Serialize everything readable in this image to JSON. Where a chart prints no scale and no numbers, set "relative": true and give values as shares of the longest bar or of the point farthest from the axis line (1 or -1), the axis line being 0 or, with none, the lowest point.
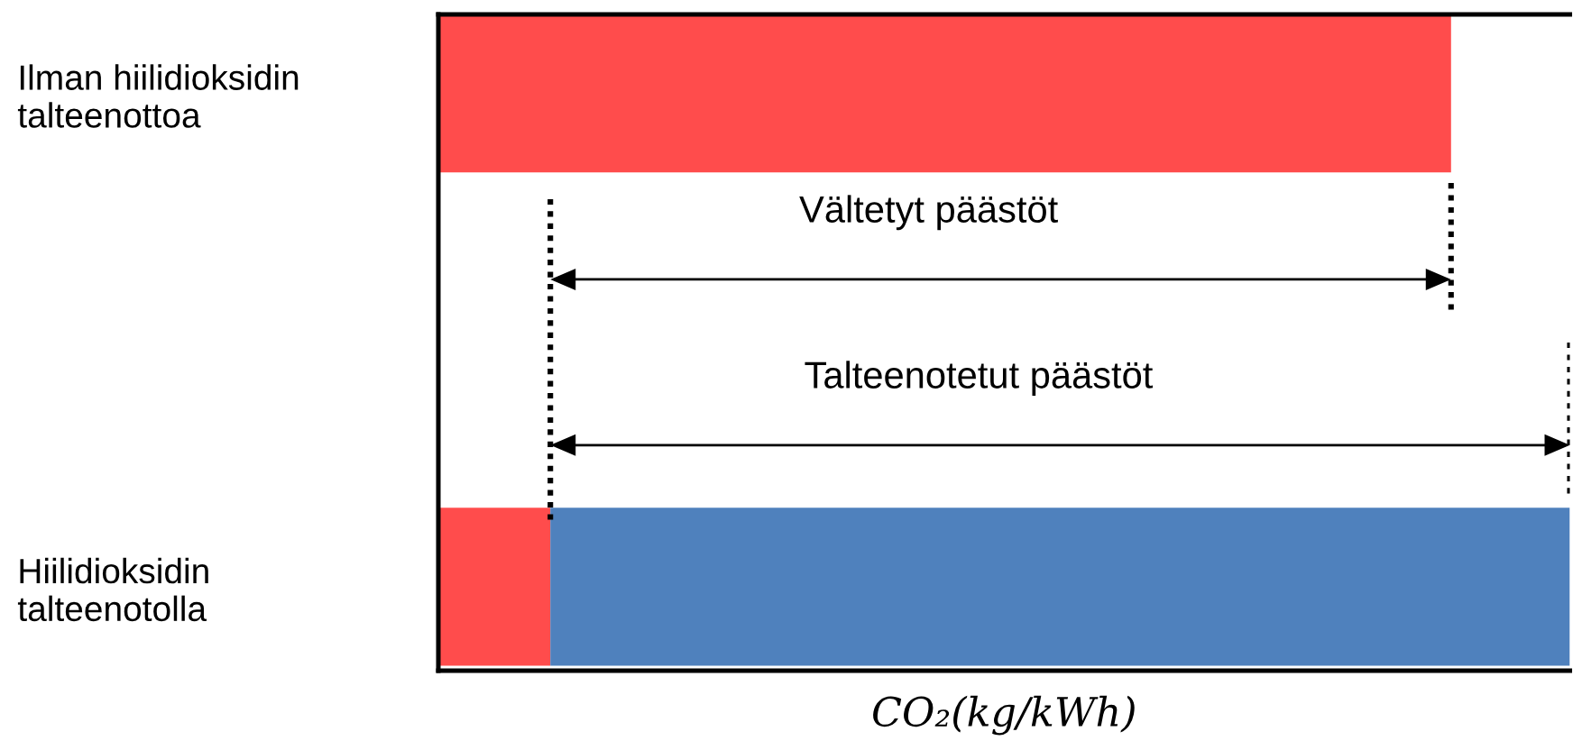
{
  "chart_data": {
    "type": "bar",
    "orientation": "horizontal",
    "stacked": true,
    "relative": true,
    "categories": [
      "Ilman hiilidioksidin\ntalteenottoa",
      "Hiilidioksidin\ntalteenotolla"
    ],
    "series": [
      {
        "color": "#ff4c4c",
        "values": [
          0.895,
          0.099
        ]
      },
      {
        "color": "#4f81bd",
        "values": [
          null,
          0.901
        ]
      }
    ],
    "xlabel": "CO₂(kg/kWh)",
    "annotations": [
      "Vältetyt päästöt",
      "Talteenotetut päästöt"
    ],
    "ref_lines": [
      {
        "axis": "x",
        "value": 0.099,
        "line_style": "dotted",
        "color": "#000000"
      },
      {
        "axis": "x",
        "value": 0.895,
        "line_style": "dotted",
        "color": "#000000"
      },
      {
        "axis": "x",
        "value": 1.0,
        "line_style": "dotted",
        "color": "#000000"
      }
    ],
    "grid": false
  }
}
